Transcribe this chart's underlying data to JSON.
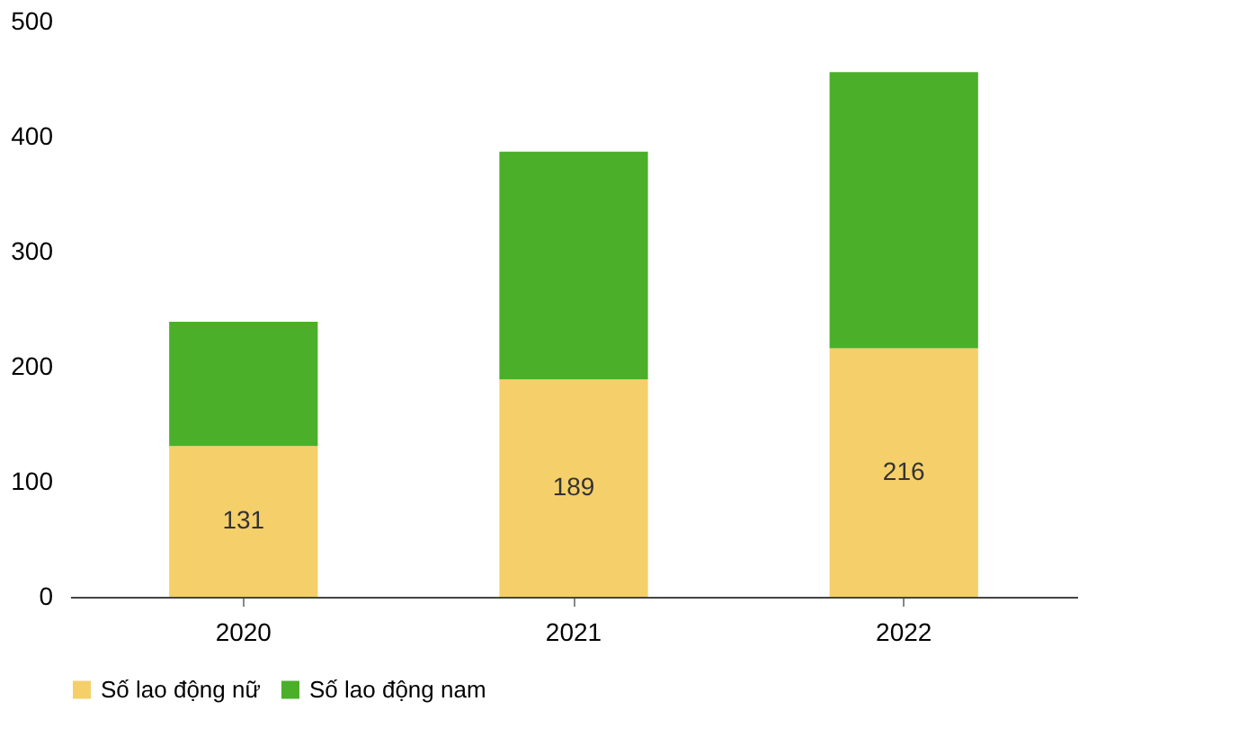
{
  "chart_data": {
    "type": "bar",
    "stacked": true,
    "categories": [
      "2020",
      "2021",
      "2022"
    ],
    "series": [
      {
        "name": "Số lao động nữ",
        "color": "#f5cf6a",
        "values": [
          131,
          189,
          216
        ],
        "value_labels": [
          "131",
          "189",
          "216"
        ]
      },
      {
        "name": "Số lao động nam",
        "color": "#4caf2a",
        "values": [
          108,
          198,
          240
        ]
      }
    ],
    "ylim": [
      0,
      500
    ],
    "yticks": [
      0,
      100,
      200,
      300,
      400,
      500
    ],
    "grid": false,
    "legend": "bottom"
  }
}
